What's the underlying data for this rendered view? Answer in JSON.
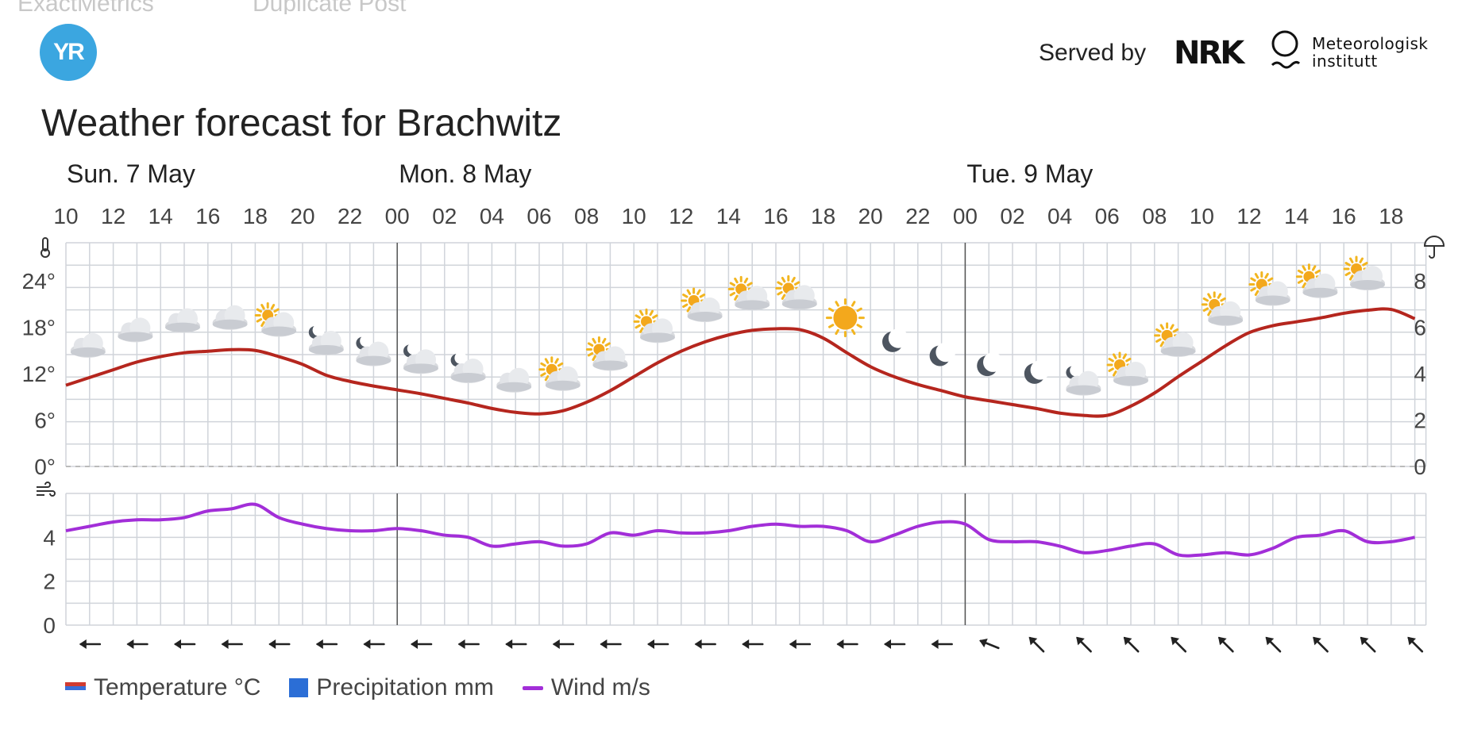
{
  "header": {
    "top_links": [
      "ExactMetrics",
      "Duplicate Post"
    ],
    "logo_text": "YR",
    "served_by": "Served by",
    "nrk_logo": "NRK",
    "met_logo_line1": "Meteorologisk",
    "met_logo_line2": "institutt"
  },
  "title": "Weather forecast for Brachwitz",
  "days": [
    "Sun. 7 May",
    "Mon. 8 May",
    "Tue. 9 May"
  ],
  "hour_labels": [
    "10",
    "12",
    "14",
    "16",
    "18",
    "20",
    "22",
    "00",
    "02",
    "04",
    "06",
    "08",
    "10",
    "12",
    "14",
    "16",
    "18",
    "20",
    "22",
    "00",
    "02",
    "04",
    "06",
    "08",
    "10",
    "12",
    "14",
    "16",
    "18"
  ],
  "legend": {
    "temperature": "Temperature °C",
    "precipitation": "Precipitation mm",
    "wind": "Wind m/s"
  },
  "colors": {
    "temperature_line": "#b5261e",
    "wind_line": "#a22ed8",
    "precipitation": "#2b6ed6",
    "grid": "#d0d4da"
  },
  "chart_data": [
    {
      "type": "line",
      "name": "temperature",
      "ylim": [
        0,
        24
      ],
      "yticks": [
        "0°",
        "6°",
        "12°",
        "18°",
        "24°"
      ],
      "y2lim": [
        0,
        8
      ],
      "y2ticks": [
        "0",
        "2",
        "4",
        "6",
        "8"
      ],
      "x": [
        "10",
        "11",
        "12",
        "13",
        "14",
        "15",
        "16",
        "17",
        "18",
        "19",
        "20",
        "21",
        "22",
        "23",
        "00",
        "01",
        "02",
        "03",
        "04",
        "05",
        "06",
        "07",
        "08",
        "09",
        "10",
        "11",
        "12",
        "13",
        "14",
        "15",
        "16",
        "17",
        "18",
        "19",
        "20",
        "21",
        "22",
        "23",
        "00",
        "01",
        "02",
        "03",
        "04",
        "05",
        "06",
        "07",
        "08",
        "09",
        "10",
        "11",
        "12",
        "13",
        "14",
        "15",
        "16",
        "17",
        "18",
        "19"
      ],
      "series": [
        {
          "name": "Temperature °C",
          "values": [
            10.5,
            11.5,
            12.5,
            13.5,
            14.2,
            14.7,
            14.9,
            15.1,
            15.0,
            14.2,
            13.2,
            11.8,
            11.0,
            10.4,
            9.9,
            9.4,
            8.8,
            8.2,
            7.5,
            7.0,
            6.8,
            7.2,
            8.3,
            9.8,
            11.6,
            13.4,
            14.9,
            16.1,
            17.0,
            17.6,
            17.8,
            17.7,
            16.6,
            14.7,
            12.9,
            11.6,
            10.6,
            9.8,
            9.0,
            8.5,
            8.0,
            7.5,
            6.9,
            6.6,
            6.6,
            7.8,
            9.5,
            11.6,
            13.6,
            15.6,
            17.3,
            18.2,
            18.7,
            19.2,
            19.8,
            20.2,
            20.3,
            19.1
          ]
        },
        {
          "name": "Precipitation mm",
          "values": [
            0,
            0,
            0,
            0,
            0,
            0,
            0,
            0,
            0,
            0,
            0,
            0,
            0,
            0,
            0,
            0,
            0,
            0,
            0,
            0,
            0,
            0,
            0,
            0,
            0,
            0,
            0,
            0,
            0,
            0,
            0,
            0,
            0,
            0,
            0,
            0,
            0,
            0,
            0,
            0,
            0,
            0,
            0,
            0,
            0,
            0,
            0,
            0,
            0,
            0,
            0,
            0,
            0,
            0,
            0,
            0,
            0,
            0
          ]
        }
      ],
      "symbols": [
        "cloud",
        "cloud",
        "cloud",
        "cloud",
        "partly-sunny",
        "night-cloud",
        "night-cloud",
        "night-cloud",
        "night-cloud",
        "cloud",
        "partly-sunny",
        "partly-sunny",
        "partly-sunny",
        "partly-sunny",
        "partly-sunny",
        "partly-sunny",
        "sun",
        "moon",
        "moon",
        "moon",
        "moon",
        "night-cloud",
        "partly-sunny",
        "partly-sunny",
        "partly-sunny",
        "partly-sunny",
        "partly-sunny",
        "partly-sunny"
      ]
    },
    {
      "type": "line",
      "name": "wind",
      "ylim": [
        0,
        6
      ],
      "yticks": [
        "0",
        "2",
        "4"
      ],
      "x": [
        "10",
        "11",
        "12",
        "13",
        "14",
        "15",
        "16",
        "17",
        "18",
        "19",
        "20",
        "21",
        "22",
        "23",
        "00",
        "01",
        "02",
        "03",
        "04",
        "05",
        "06",
        "07",
        "08",
        "09",
        "10",
        "11",
        "12",
        "13",
        "14",
        "15",
        "16",
        "17",
        "18",
        "19",
        "20",
        "21",
        "22",
        "23",
        "00",
        "01",
        "02",
        "03",
        "04",
        "05",
        "06",
        "07",
        "08",
        "09",
        "10",
        "11",
        "12",
        "13",
        "14",
        "15",
        "16",
        "17",
        "18",
        "19"
      ],
      "series": [
        {
          "name": "Wind m/s",
          "values": [
            4.3,
            4.5,
            4.7,
            4.8,
            4.8,
            4.9,
            5.2,
            5.3,
            5.5,
            4.9,
            4.6,
            4.4,
            4.3,
            4.3,
            4.4,
            4.3,
            4.1,
            4.0,
            3.6,
            3.7,
            3.8,
            3.6,
            3.7,
            4.2,
            4.1,
            4.3,
            4.2,
            4.2,
            4.3,
            4.5,
            4.6,
            4.5,
            4.5,
            4.3,
            3.8,
            4.1,
            4.5,
            4.7,
            4.6,
            3.9,
            3.8,
            3.8,
            3.6,
            3.3,
            3.4,
            3.6,
            3.7,
            3.2,
            3.2,
            3.3,
            3.2,
            3.5,
            4.0,
            4.1,
            4.3,
            3.8,
            3.8,
            4.0
          ]
        }
      ],
      "wind_directions_deg": [
        90,
        90,
        90,
        90,
        90,
        90,
        90,
        90,
        90,
        90,
        90,
        90,
        90,
        90,
        90,
        90,
        90,
        90,
        90,
        112,
        135,
        135,
        135,
        135,
        135,
        135,
        135,
        135,
        135
      ]
    }
  ]
}
